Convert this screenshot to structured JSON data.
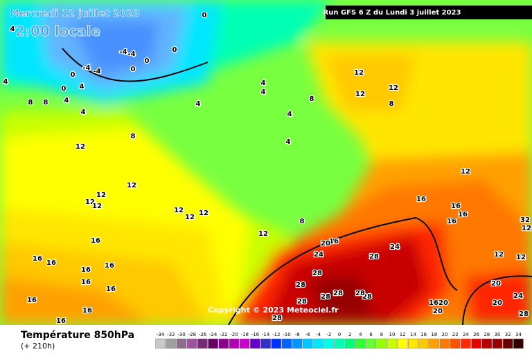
{
  "header": {
    "date": "Mercredi 12 juillet 2023",
    "local_time": "2:00 locale",
    "run": "Run GFS 6 Z du Lundi 3 juillet 2023"
  },
  "copyright": "Copyright © 2023 Meteociel.fr",
  "legend": {
    "title": "Température 850hPa",
    "lead_time": "(+ 210h)",
    "ticks": [
      -34,
      -32,
      -30,
      -28,
      -26,
      -24,
      -22,
      -20,
      -18,
      -16,
      -14,
      -12,
      -10,
      -8,
      -6,
      -4,
      -2,
      0,
      2,
      4,
      6,
      8,
      10,
      12,
      14,
      16,
      18,
      20,
      22,
      24,
      26,
      28,
      30,
      32,
      34
    ],
    "colors": [
      "#c8c8c8",
      "#a0a0a0",
      "#8c6e8c",
      "#a050a0",
      "#782878",
      "#640064",
      "#8c008c",
      "#b400b4",
      "#c800c8",
      "#6400c8",
      "#3232c8",
      "#0032ff",
      "#0064ff",
      "#0096ff",
      "#00c8ff",
      "#00e6ff",
      "#00ffe6",
      "#00ffb4",
      "#00ff78",
      "#32ff32",
      "#64ff32",
      "#96ff00",
      "#c8ff00",
      "#ffff00",
      "#ffe600",
      "#ffc800",
      "#ffa000",
      "#ff7800",
      "#ff5000",
      "#ff2800",
      "#e60000",
      "#b40000",
      "#960000",
      "#640000",
      "#320000"
    ]
  },
  "contour_labels": [
    4,
    -4,
    -4,
    0,
    0,
    0,
    -4,
    -4,
    0,
    0,
    4,
    4,
    4,
    8,
    8,
    4,
    0,
    4,
    4,
    4,
    4,
    8,
    12,
    12,
    12,
    8,
    8,
    12,
    12,
    12,
    12,
    12,
    12,
    12,
    12,
    12,
    8,
    4,
    16,
    16,
    16,
    16,
    16,
    16,
    16,
    16,
    16,
    16,
    16,
    16,
    16,
    16,
    16,
    20,
    24,
    24,
    28,
    28,
    28,
    28,
    28,
    28,
    28,
    28,
    28,
    12,
    12,
    12,
    16,
    20,
    20,
    20,
    20,
    24,
    28,
    32,
    12
  ]
}
